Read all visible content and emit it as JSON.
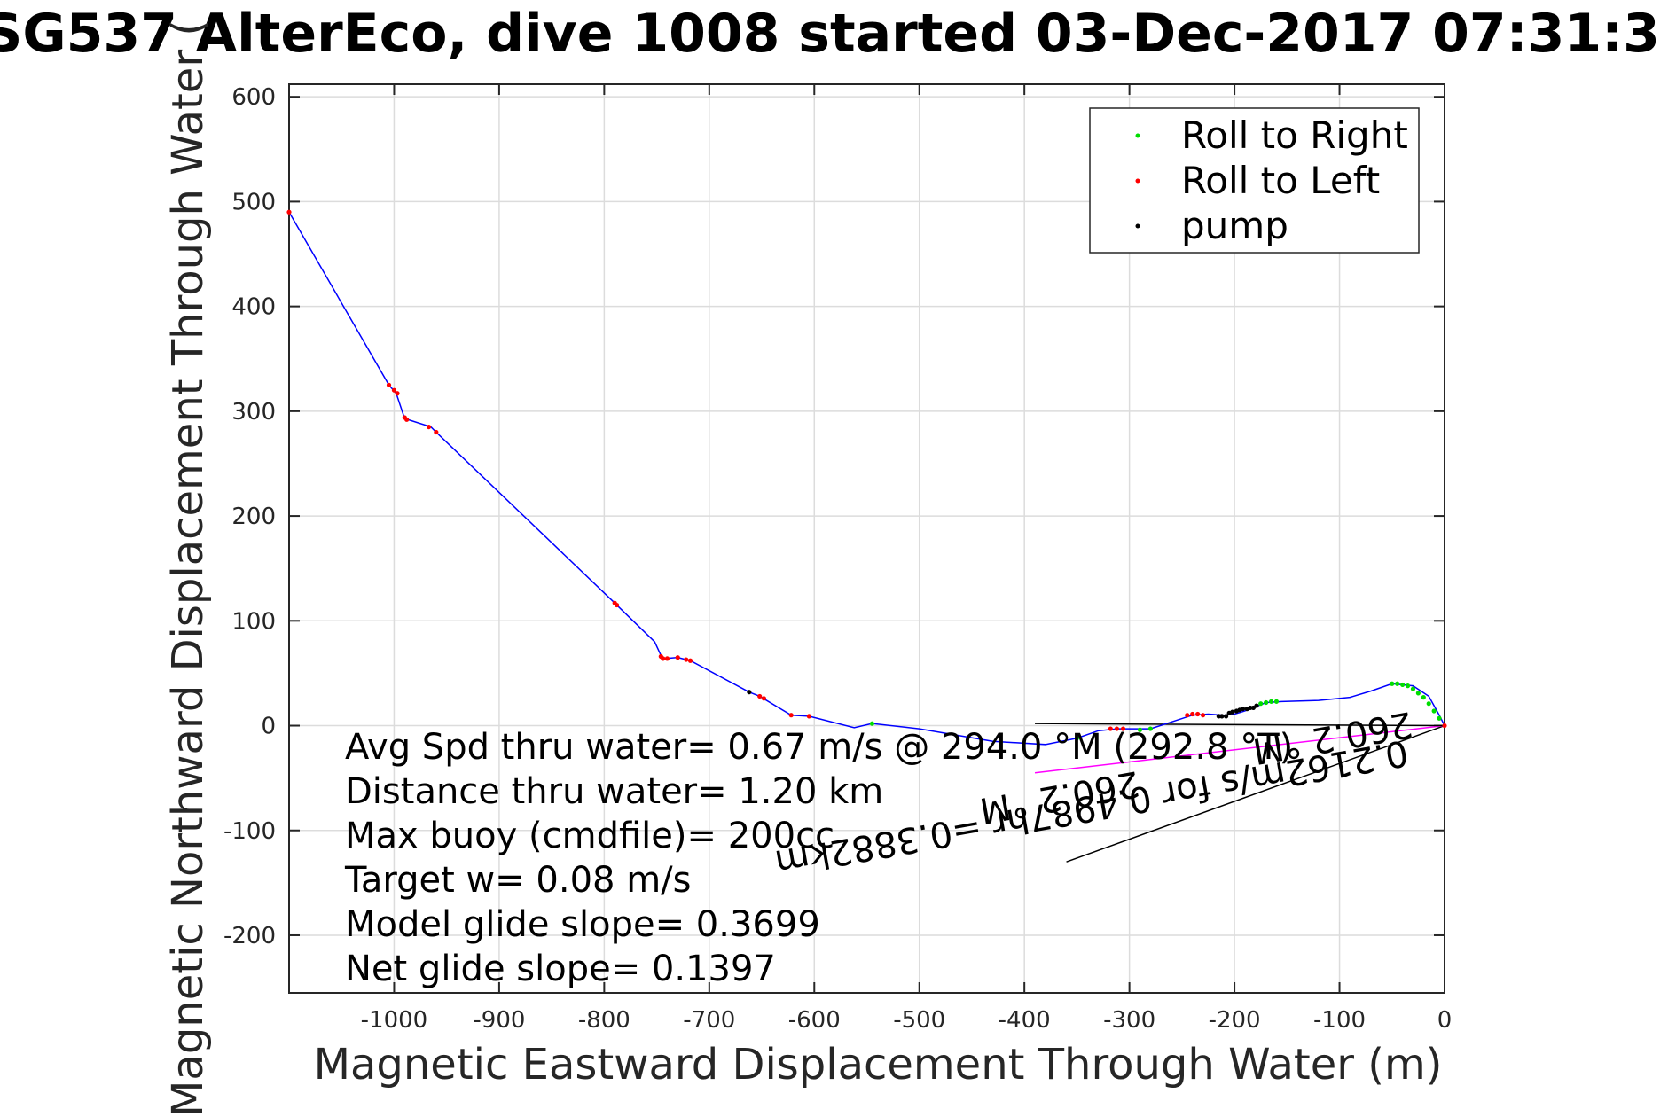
{
  "chart_data": {
    "type": "line",
    "title": "SG537 AlterEco, dive 1008 started 03-Dec-2017 07:31:3",
    "xlabel": "Magnetic Eastward Displacement Through Water (m)",
    "ylabel": "Magnetic Northward Displacement Through Water (",
    "xlim": [
      -1100,
      0
    ],
    "ylim": [
      -255,
      612
    ],
    "xticks": [
      -1000,
      -900,
      -800,
      -700,
      -600,
      -500,
      -400,
      -300,
      -200,
      -100,
      0
    ],
    "yticks": [
      -200,
      -100,
      0,
      100,
      200,
      300,
      400,
      500,
      600
    ],
    "grid": true,
    "legend_position": "top-right",
    "legend": [
      {
        "name": "Roll to Right",
        "color": "#00dd00"
      },
      {
        "name": "Roll to Left",
        "color": "#ff0000"
      },
      {
        "name": "pump",
        "color": "#000000"
      }
    ],
    "series": [
      {
        "name": "track",
        "color": "#0000ff",
        "x": [
          -1100,
          -1005,
          -998,
          -990,
          -965,
          -960,
          -790,
          -788,
          -752,
          -746,
          -742,
          -730,
          -718,
          -662,
          -652,
          -622,
          -605,
          -562,
          -545,
          -500,
          -430,
          -380,
          -350,
          -330,
          -312,
          -300,
          -280,
          -240,
          -225,
          -210,
          -200,
          -190,
          -180,
          -170,
          -155,
          -120,
          -90,
          -70,
          -50,
          -30,
          -15,
          -5,
          0
        ],
        "y": [
          490,
          325,
          317,
          293,
          285,
          280,
          117,
          115,
          80,
          67,
          64,
          65,
          62,
          32,
          28,
          10,
          9,
          -2,
          2,
          -3,
          -15,
          -18,
          -12,
          -5,
          -3,
          -3,
          -3,
          10,
          11,
          10,
          11,
          14,
          18,
          22,
          23,
          24,
          27,
          33,
          40,
          38,
          28,
          10,
          0
        ]
      },
      {
        "name": "Roll to Right",
        "color": "#00dd00",
        "x": [
          -545,
          -350,
          -290,
          -280,
          -175,
          -170,
          -165,
          -160,
          -50,
          -45,
          -40,
          -35,
          -30,
          -25,
          -20,
          -15,
          -10,
          -5
        ],
        "y": [
          2,
          -12,
          -4,
          -3,
          21,
          22,
          23,
          23,
          40,
          40,
          39,
          38,
          35,
          31,
          27,
          21,
          14,
          7
        ]
      },
      {
        "name": "Roll to Left",
        "color": "#ff0000",
        "x": [
          -1100,
          -1005,
          -1000,
          -997,
          -990,
          -988,
          -967,
          -960,
          -790,
          -788,
          -746,
          -744,
          -740,
          -730,
          -722,
          -718,
          -652,
          -648,
          -622,
          -605,
          -318,
          -312,
          -306,
          -245,
          -240,
          -235,
          -230,
          0
        ],
        "y": [
          490,
          325,
          320,
          317,
          294,
          292,
          285,
          280,
          117,
          115,
          66,
          64,
          64,
          65,
          63,
          62,
          28,
          26,
          10,
          9,
          -3,
          -3,
          -3,
          10,
          11,
          11,
          10,
          0
        ]
      },
      {
        "name": "pump",
        "color": "#000000",
        "x": [
          -662,
          -215,
          -212,
          -208,
          -205,
          -202,
          -198,
          -195,
          -192,
          -188,
          -185,
          -182,
          -179
        ],
        "y": [
          32,
          9,
          9,
          9,
          12,
          13,
          14,
          15,
          16,
          16,
          17,
          17,
          19
        ]
      }
    ],
    "lines": [
      {
        "name": "current",
        "color": "#000000",
        "x": [
          0,
          -360
        ],
        "y": [
          0,
          -130
        ]
      },
      {
        "name": "avg-course",
        "color": "#ff00ff",
        "x": [
          0,
          -390
        ],
        "y": [
          0,
          -45
        ]
      },
      {
        "name": "reference",
        "color": "#000000",
        "x": [
          -390,
          0
        ],
        "y": [
          2,
          0
        ]
      }
    ],
    "annotations": [
      "Avg Spd thru water=  0.67 m/s @ 294.0 °M (292.8 °T)",
      "Distance thru water=  1.20 km",
      "Max buoy (cmdfile)= 200cc",
      "Target w= 0.08 m/s",
      "Model glide slope= 0.3699",
      "Net glide slope= 0.1397"
    ],
    "rotated_annotations": [
      "0.2162m/s for 0.4987hr =0.3882km",
      "260.2 °M",
      "260.2 °M"
    ]
  }
}
